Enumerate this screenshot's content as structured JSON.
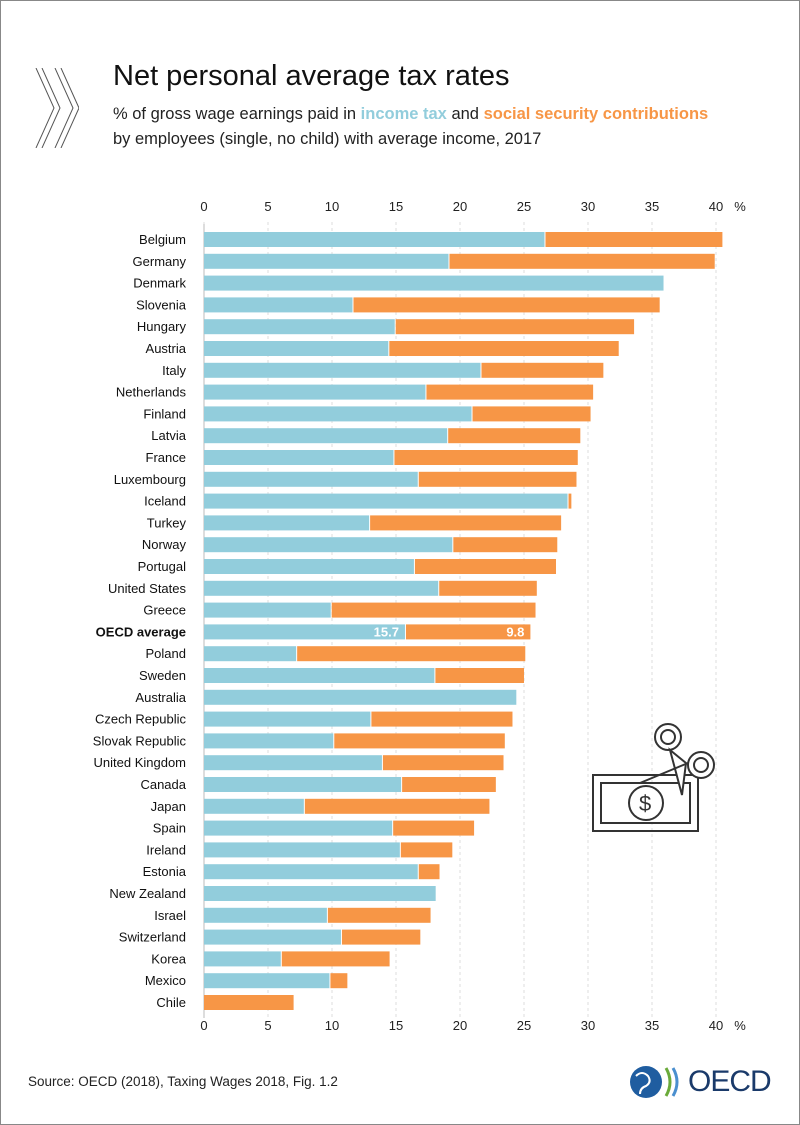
{
  "header": {
    "title": "Net personal average tax rates",
    "subtitle_prefix": "% of gross wage earnings paid in ",
    "subtitle_income": "income tax",
    "subtitle_and": " and ",
    "subtitle_ssc": "social security contributions",
    "subtitle_line2": "by employees (single, no child) with average income, 2017"
  },
  "footer": {
    "source": "Source: OECD (2018), Taxing Wages 2018, Fig. 1.2",
    "logo": "OECD"
  },
  "colors": {
    "income_tax": "#92cddc",
    "ssc": "#f79646",
    "grid": "#dddddd"
  },
  "chart_data": {
    "type": "bar",
    "orientation": "horizontal",
    "stacked": true,
    "title": "Net personal average tax rates",
    "xlabel": "%",
    "xlim": [
      0,
      40
    ],
    "xticks": [
      "0",
      "5",
      "10",
      "15",
      "20",
      "25",
      "30",
      "35",
      "40"
    ],
    "unit_label": "%",
    "highlight": "OECD average",
    "categories": [
      "Belgium",
      "Germany",
      "Denmark",
      "Slovenia",
      "Hungary",
      "Austria",
      "Italy",
      "Netherlands",
      "Finland",
      "Latvia",
      "France",
      "Luxembourg",
      "Iceland",
      "Turkey",
      "Norway",
      "Portugal",
      "United States",
      "Greece",
      "OECD average",
      "Poland",
      "Sweden",
      "Australia",
      "Czech Republic",
      "Slovak Republic",
      "United Kingdom",
      "Canada",
      "Japan",
      "Spain",
      "Ireland",
      "Estonia",
      "New Zealand",
      "Israel",
      "Switzerland",
      "Korea",
      "Mexico",
      "Chile"
    ],
    "series": [
      {
        "name": "income tax",
        "values": [
          26.6,
          19.1,
          35.9,
          11.6,
          14.9,
          14.4,
          21.6,
          17.3,
          20.9,
          19.0,
          14.8,
          16.7,
          28.4,
          12.9,
          19.4,
          16.4,
          18.3,
          9.9,
          15.7,
          7.2,
          18.0,
          24.4,
          13.0,
          10.1,
          13.9,
          15.4,
          7.8,
          14.7,
          15.3,
          16.7,
          18.1,
          9.6,
          10.7,
          6.0,
          9.8,
          0
        ]
      },
      {
        "name": "social security contributions",
        "values": [
          13.9,
          20.8,
          0,
          24.0,
          18.7,
          18.0,
          9.6,
          13.1,
          9.3,
          10.4,
          14.4,
          12.4,
          0.3,
          15.0,
          8.2,
          11.1,
          7.7,
          16.0,
          9.8,
          17.9,
          7.0,
          0,
          11.1,
          13.4,
          9.5,
          7.4,
          14.5,
          6.4,
          4.1,
          1.7,
          0,
          8.1,
          6.2,
          8.5,
          1.4,
          7.0
        ]
      }
    ],
    "data_labels": {
      "income": "15.7",
      "ssc": "9.8"
    }
  }
}
